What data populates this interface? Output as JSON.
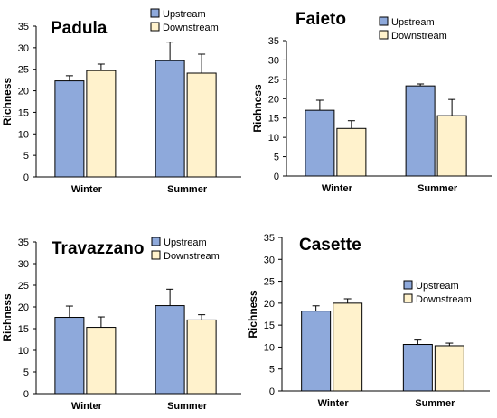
{
  "chart_data": [
    {
      "type": "bar",
      "title": "Padula",
      "xlabel": "",
      "ylabel": "Richness",
      "ylim": [
        0,
        35
      ],
      "yticks": [
        0,
        5,
        10,
        15,
        20,
        25,
        30,
        35
      ],
      "categories": [
        "Winter",
        "Summer"
      ],
      "legend_position": "top-right",
      "series": [
        {
          "name": "Upstream",
          "color": "#8EA9DB",
          "values": [
            22.3,
            27.0
          ],
          "errors": [
            1.2,
            4.3
          ]
        },
        {
          "name": "Downstream",
          "color": "#FFF2CC",
          "values": [
            24.7,
            24.1
          ],
          "errors": [
            1.5,
            4.4
          ]
        }
      ]
    },
    {
      "type": "bar",
      "title": "Faieto",
      "xlabel": "",
      "ylabel": "Richness",
      "ylim": [
        0,
        35
      ],
      "yticks": [
        0,
        5,
        10,
        15,
        20,
        25,
        30,
        35
      ],
      "categories": [
        "Winter",
        "Summer"
      ],
      "legend_position": "top-right",
      "series": [
        {
          "name": "Upstream",
          "color": "#8EA9DB",
          "values": [
            17.0,
            23.3
          ],
          "errors": [
            2.6,
            0.5
          ]
        },
        {
          "name": "Downstream",
          "color": "#FFF2CC",
          "values": [
            12.3,
            15.6
          ],
          "errors": [
            2.0,
            4.2
          ]
        }
      ]
    },
    {
      "type": "bar",
      "title": "Travazzano",
      "xlabel": "",
      "ylabel": "Richness",
      "ylim": [
        0,
        35
      ],
      "yticks": [
        0,
        5,
        10,
        15,
        20,
        25,
        30,
        35
      ],
      "categories": [
        "Winter",
        "Summer"
      ],
      "legend_position": "top-right",
      "series": [
        {
          "name": "Upstream",
          "color": "#8EA9DB",
          "values": [
            17.6,
            20.3
          ],
          "errors": [
            2.6,
            3.8
          ]
        },
        {
          "name": "Downstream",
          "color": "#FFF2CC",
          "values": [
            15.3,
            17.0
          ],
          "errors": [
            2.4,
            1.2
          ]
        }
      ]
    },
    {
      "type": "bar",
      "title": "Casette",
      "xlabel": "",
      "ylabel": "Richness",
      "ylim": [
        0,
        35
      ],
      "yticks": [
        0,
        5,
        10,
        15,
        20,
        25,
        30,
        35
      ],
      "categories": [
        "Winter",
        "Summer"
      ],
      "legend_position": "top-right",
      "series": [
        {
          "name": "Upstream",
          "color": "#8EA9DB",
          "values": [
            18.2,
            10.6
          ],
          "errors": [
            1.2,
            1.0
          ]
        },
        {
          "name": "Downstream",
          "color": "#FFF2CC",
          "values": [
            20.0,
            10.3
          ],
          "errors": [
            1.0,
            0.6
          ]
        }
      ]
    }
  ]
}
